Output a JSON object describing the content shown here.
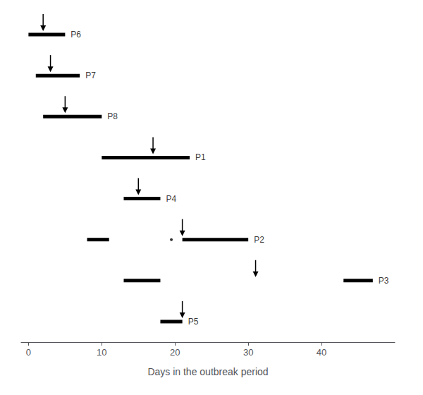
{
  "chart_data": {
    "type": "timeline",
    "categories": [
      "P6",
      "P7",
      "P8",
      "P1",
      "P4",
      "P2",
      "P3",
      "P5"
    ],
    "bars": [
      [
        [
          0,
          5
        ]
      ],
      [
        [
          1,
          7
        ]
      ],
      [
        [
          2,
          10
        ]
      ],
      [
        [
          10,
          22
        ]
      ],
      [
        [
          13,
          18
        ]
      ],
      [
        [
          8,
          11
        ],
        [
          21,
          30
        ]
      ],
      [
        [
          13,
          18
        ],
        [
          43,
          47
        ]
      ],
      [
        [
          18,
          21
        ]
      ]
    ],
    "arrows": [
      2,
      3,
      5,
      17,
      15,
      21,
      31,
      21
    ],
    "dots": [
      {
        "category": "P2",
        "x": 19.5
      }
    ],
    "xlabel": "Days in the outbreak period",
    "xlim": [
      -1,
      50
    ],
    "xticks": [
      0,
      10,
      20,
      30,
      40
    ],
    "grid": false,
    "tick_labels": "x",
    "color": "black"
  }
}
